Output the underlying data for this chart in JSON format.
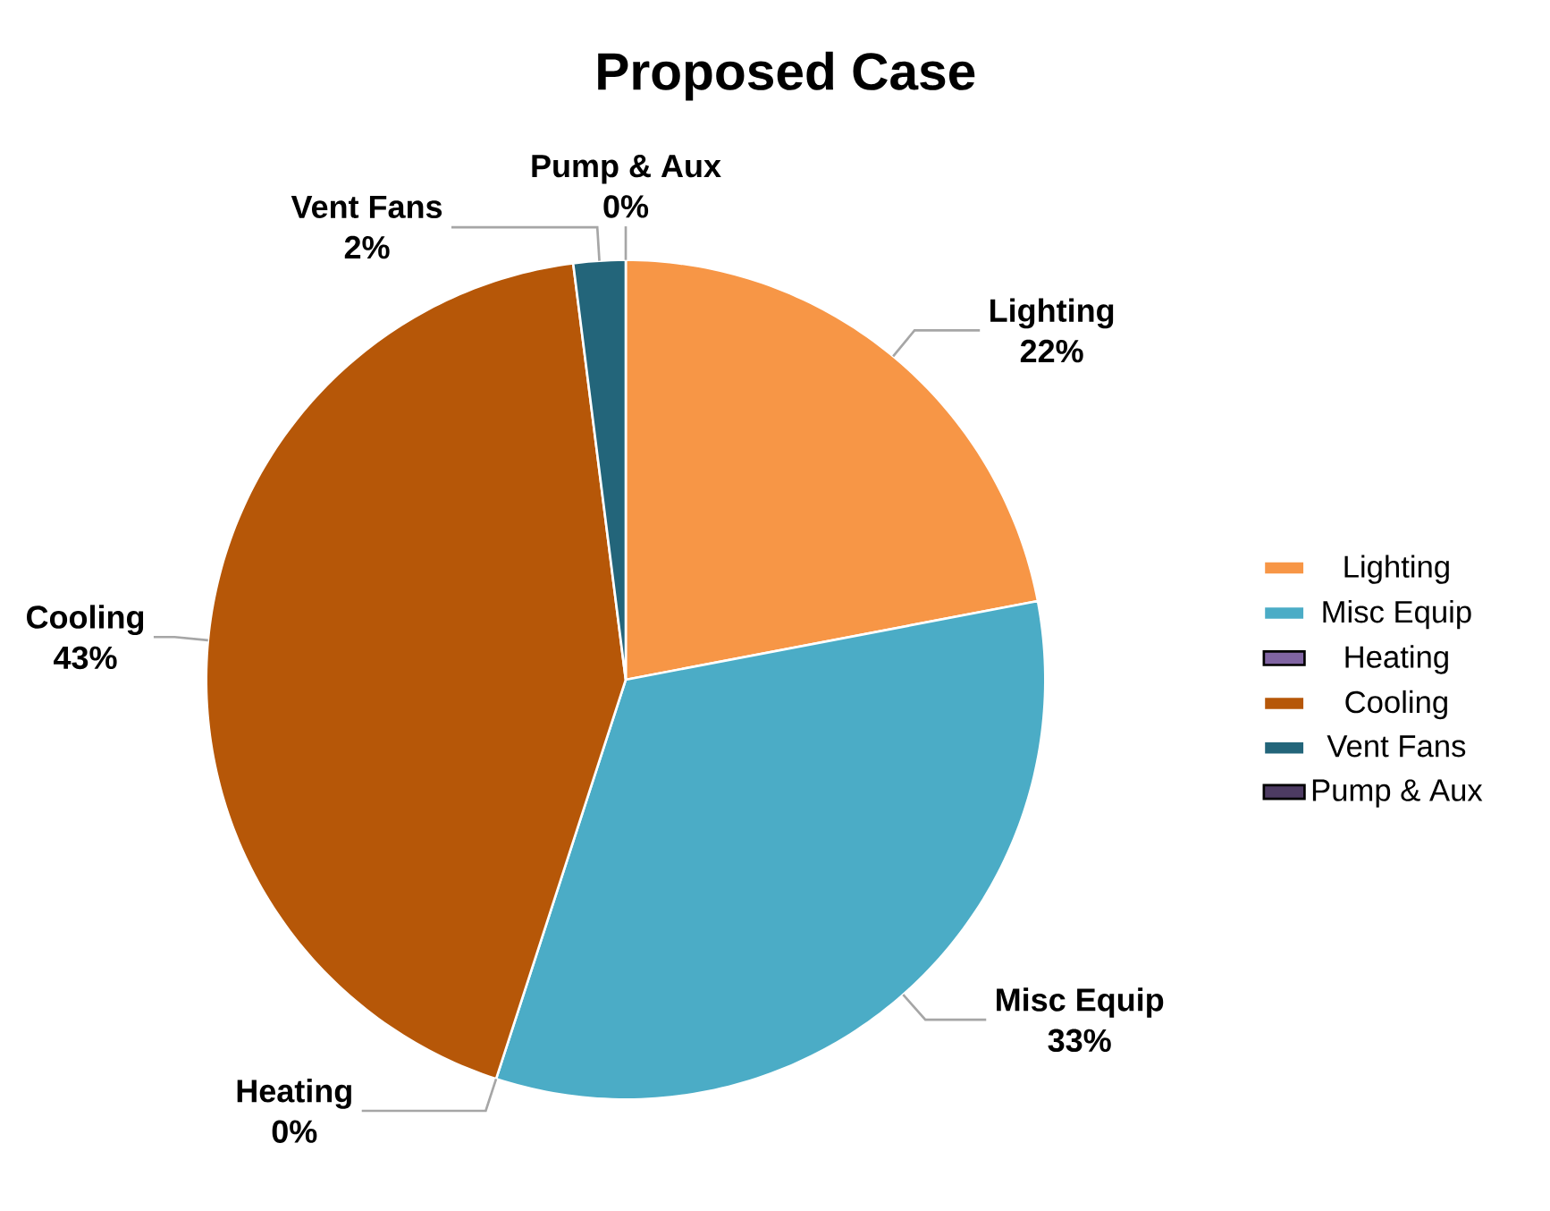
{
  "chart_data": {
    "type": "pie",
    "title": "Proposed Case",
    "categories": [
      "Lighting",
      "Misc Equip",
      "Heating",
      "Cooling",
      "Vent Fans",
      "Pump & Aux"
    ],
    "values": [
      22,
      33,
      0,
      43,
      2,
      0
    ],
    "value_labels": [
      "22%",
      "33%",
      "0%",
      "43%",
      "2%",
      "0%"
    ],
    "colors": [
      "#f79646",
      "#4bacc6",
      "#8064a2",
      "#b65708",
      "#23657a",
      "#4d3b62"
    ],
    "legend": "right"
  }
}
